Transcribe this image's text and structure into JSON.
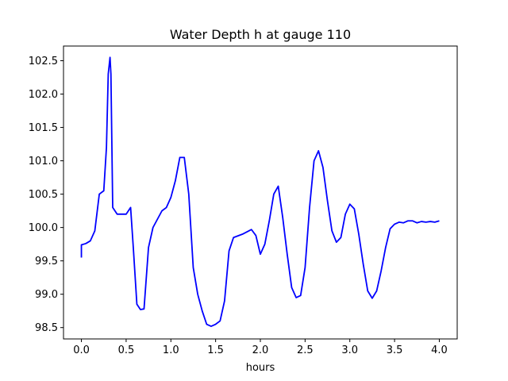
{
  "chart_data": {
    "type": "line",
    "title": "Water Depth h at gauge 110",
    "xlabel": "hours",
    "ylabel": "",
    "xlim": [
      -0.2,
      4.2
    ],
    "ylim": [
      98.33,
      102.72
    ],
    "xticks": [
      0.0,
      0.5,
      1.0,
      1.5,
      2.0,
      2.5,
      3.0,
      3.5,
      4.0
    ],
    "xtick_labels": [
      "0.0",
      "0.5",
      "1.0",
      "1.5",
      "2.0",
      "2.5",
      "3.0",
      "3.5",
      "4.0"
    ],
    "yticks": [
      98.5,
      99.0,
      99.5,
      100.0,
      100.5,
      101.0,
      101.5,
      102.0,
      102.5
    ],
    "ytick_labels": [
      "98.5",
      "99.0",
      "99.5",
      "100.0",
      "100.5",
      "101.0",
      "101.5",
      "102.0",
      "102.5"
    ],
    "grid": false,
    "legend": "none",
    "series": [
      {
        "color": "#0000ff",
        "x": [
          0.0,
          0.0,
          0.05,
          0.1,
          0.15,
          0.2,
          0.25,
          0.28,
          0.3,
          0.32,
          0.33,
          0.35,
          0.4,
          0.5,
          0.55,
          0.58,
          0.62,
          0.66,
          0.7,
          0.75,
          0.8,
          0.9,
          0.95,
          1.0,
          1.05,
          1.1,
          1.15,
          1.2,
          1.25,
          1.3,
          1.35,
          1.4,
          1.45,
          1.5,
          1.55,
          1.6,
          1.65,
          1.7,
          1.8,
          1.9,
          1.95,
          2.0,
          2.05,
          2.1,
          2.15,
          2.2,
          2.25,
          2.3,
          2.35,
          2.4,
          2.45,
          2.5,
          2.55,
          2.6,
          2.65,
          2.7,
          2.75,
          2.8,
          2.85,
          2.9,
          2.95,
          3.0,
          3.05,
          3.1,
          3.15,
          3.2,
          3.25,
          3.3,
          3.35,
          3.4,
          3.45,
          3.5,
          3.55,
          3.6,
          3.65,
          3.7,
          3.75,
          3.8,
          3.85,
          3.9,
          3.95,
          4.0
        ],
        "y": [
          99.55,
          99.74,
          99.76,
          99.8,
          99.95,
          100.5,
          100.55,
          101.2,
          102.3,
          102.55,
          102.3,
          100.3,
          100.2,
          100.2,
          100.3,
          99.7,
          98.85,
          98.77,
          98.78,
          99.7,
          100.0,
          100.25,
          100.3,
          100.45,
          100.7,
          101.05,
          101.05,
          100.5,
          99.4,
          99.0,
          98.75,
          98.55,
          98.52,
          98.55,
          98.6,
          98.9,
          99.65,
          99.85,
          99.9,
          99.97,
          99.88,
          99.6,
          99.75,
          100.1,
          100.5,
          100.62,
          100.15,
          99.6,
          99.1,
          98.95,
          98.98,
          99.4,
          100.3,
          101.0,
          101.15,
          100.9,
          100.4,
          99.95,
          99.78,
          99.85,
          100.2,
          100.35,
          100.28,
          99.9,
          99.45,
          99.05,
          98.94,
          99.05,
          99.35,
          99.7,
          99.98,
          100.05,
          100.08,
          100.07,
          100.1,
          100.1,
          100.07,
          100.09,
          100.08,
          100.09,
          100.08,
          100.1
        ]
      }
    ]
  }
}
